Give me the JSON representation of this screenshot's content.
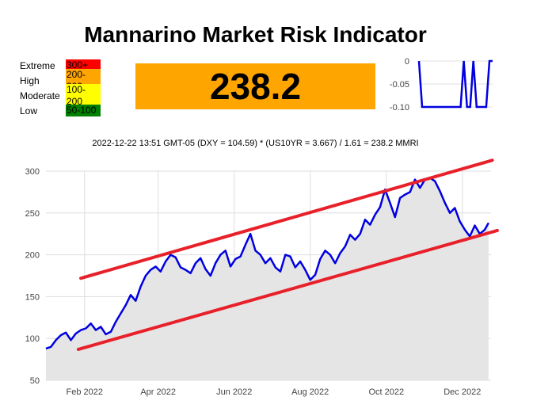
{
  "title": "Mannarino Market Risk Indicator",
  "value_display": "238.2",
  "formula_text": "2022-12-22 13:51 GMT-05 (DXY = 104.59) * (US10YR = 3.667) / 1.61 = 238.2 MMRI",
  "legend": [
    {
      "name": "Extreme",
      "range": "300+",
      "color": "#ff0000"
    },
    {
      "name": "High",
      "range": "200-300",
      "color": "#ffa500"
    },
    {
      "name": "Moderate",
      "range": "100-200",
      "color": "#ffff00"
    },
    {
      "name": "Low",
      "range": "50-100",
      "color": "#008000"
    }
  ],
  "colors": {
    "value_box": "#ffa500",
    "series": "#0000e0",
    "channel": "#e8202a",
    "area": "#e5e5e5"
  },
  "chart_data": [
    {
      "type": "area",
      "title": "",
      "xlabel": "",
      "ylabel": "",
      "xlim": [
        "2022-01-01",
        "2022-12-24"
      ],
      "ylim": [
        50,
        300
      ],
      "grid": true,
      "x_ticks": [
        "Feb 2022",
        "Apr 2022",
        "Jun 2022",
        "Aug 2022",
        "Oct 2022",
        "Dec 2022"
      ],
      "x_tick_dates": [
        "2022-02-01",
        "2022-04-01",
        "2022-06-01",
        "2022-08-01",
        "2022-10-01",
        "2022-12-01"
      ],
      "y_ticks": [
        50,
        100,
        150,
        200,
        250,
        300
      ],
      "series": [
        {
          "x": [
            "2022-01-01",
            "2022-01-05",
            "2022-01-09",
            "2022-01-13",
            "2022-01-17",
            "2022-01-21",
            "2022-01-25",
            "2022-01-29",
            "2022-02-02",
            "2022-02-06",
            "2022-02-10",
            "2022-02-14",
            "2022-02-18",
            "2022-02-22",
            "2022-02-26",
            "2022-03-02",
            "2022-03-06",
            "2022-03-10",
            "2022-03-14",
            "2022-03-18",
            "2022-03-22",
            "2022-03-26",
            "2022-03-30",
            "2022-04-03",
            "2022-04-07",
            "2022-04-11",
            "2022-04-15",
            "2022-04-19",
            "2022-04-23",
            "2022-04-27",
            "2022-05-01",
            "2022-05-05",
            "2022-05-09",
            "2022-05-13",
            "2022-05-17",
            "2022-05-21",
            "2022-05-25",
            "2022-05-29",
            "2022-06-02",
            "2022-06-06",
            "2022-06-10",
            "2022-06-14",
            "2022-06-18",
            "2022-06-22",
            "2022-06-26",
            "2022-06-30",
            "2022-07-04",
            "2022-07-08",
            "2022-07-12",
            "2022-07-16",
            "2022-07-20",
            "2022-07-24",
            "2022-07-28",
            "2022-08-01",
            "2022-08-05",
            "2022-08-09",
            "2022-08-13",
            "2022-08-17",
            "2022-08-21",
            "2022-08-25",
            "2022-08-29",
            "2022-09-02",
            "2022-09-06",
            "2022-09-10",
            "2022-09-14",
            "2022-09-18",
            "2022-09-22",
            "2022-09-26",
            "2022-09-30",
            "2022-10-04",
            "2022-10-08",
            "2022-10-12",
            "2022-10-16",
            "2022-10-20",
            "2022-10-24",
            "2022-10-28",
            "2022-11-01",
            "2022-11-05",
            "2022-11-09",
            "2022-11-13",
            "2022-11-17",
            "2022-11-21",
            "2022-11-25",
            "2022-11-29",
            "2022-12-03",
            "2022-12-07",
            "2022-12-11",
            "2022-12-15",
            "2022-12-19",
            "2022-12-22"
          ],
          "y": [
            88,
            90,
            98,
            104,
            107,
            98,
            106,
            110,
            112,
            118,
            110,
            114,
            105,
            108,
            120,
            130,
            140,
            152,
            145,
            162,
            175,
            182,
            186,
            180,
            192,
            200,
            197,
            185,
            182,
            178,
            190,
            196,
            183,
            175,
            190,
            200,
            205,
            186,
            195,
            198,
            212,
            225,
            205,
            200,
            190,
            196,
            185,
            180,
            200,
            198,
            185,
            192,
            182,
            170,
            176,
            195,
            205,
            200,
            190,
            202,
            210,
            224,
            218,
            225,
            242,
            236,
            248,
            257,
            278,
            262,
            245,
            268,
            272,
            275,
            290,
            280,
            290,
            292,
            288,
            276,
            262,
            250,
            256,
            240,
            230,
            222,
            235,
            225,
            230,
            238.2
          ]
        }
      ],
      "channel": [
        {
          "x": [
            "2022-01-29",
            "2022-12-25"
          ],
          "y": [
            172,
            313
          ]
        },
        {
          "x": [
            "2022-01-27",
            "2022-12-29"
          ],
          "y": [
            87,
            229
          ]
        }
      ]
    },
    {
      "type": "line",
      "title": "",
      "ylim": [
        -0.1,
        0
      ],
      "y_ticks": [
        "0",
        "-0.05",
        "-0.10"
      ],
      "series": [
        {
          "x": [
            0,
            1,
            2,
            3,
            4,
            5,
            6,
            7,
            8,
            9,
            10,
            11,
            12,
            13,
            14,
            15,
            16,
            17,
            18,
            19,
            20,
            21,
            22,
            23
          ],
          "y": [
            0,
            -0.1,
            -0.1,
            -0.1,
            -0.1,
            -0.1,
            -0.1,
            -0.1,
            -0.1,
            -0.1,
            -0.1,
            -0.1,
            -0.1,
            -0.1,
            0,
            -0.1,
            -0.1,
            0,
            -0.1,
            -0.1,
            -0.1,
            -0.1,
            0,
            0
          ]
        }
      ]
    }
  ]
}
